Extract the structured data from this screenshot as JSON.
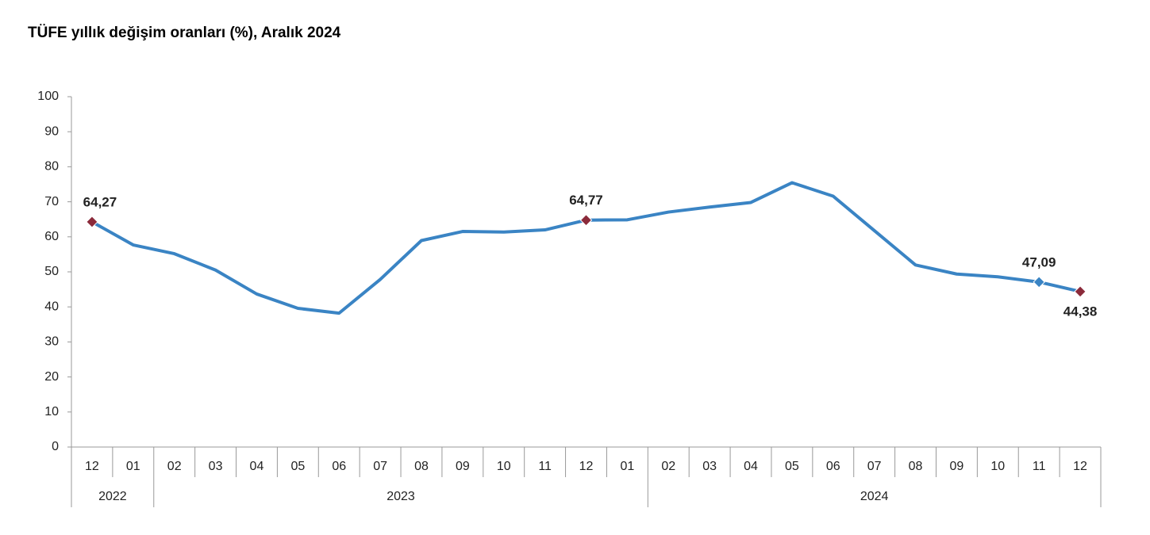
{
  "chart_data": {
    "type": "line",
    "title": "TÜFE yıllık değişim oranları (%), Aralık 2024",
    "categories": [
      "12",
      "01",
      "02",
      "03",
      "04",
      "05",
      "06",
      "07",
      "08",
      "09",
      "10",
      "11",
      "12",
      "01",
      "02",
      "03",
      "04",
      "05",
      "06",
      "07",
      "08",
      "09",
      "10",
      "11",
      "12"
    ],
    "year_labels": [
      "2022",
      null,
      "2023",
      null,
      null,
      null,
      null,
      null,
      null,
      null,
      null,
      null,
      null,
      null,
      "2024",
      null,
      null,
      null,
      null,
      null,
      null,
      null,
      null,
      null,
      null
    ],
    "series": [
      {
        "color": "#3a84c4",
        "values": [
          64.27,
          57.68,
          55.18,
          50.51,
          43.68,
          39.59,
          38.21,
          47.83,
          58.94,
          61.53,
          61.36,
          61.98,
          64.77,
          64.86,
          67.07,
          68.5,
          69.8,
          75.45,
          71.6,
          61.78,
          51.97,
          49.38,
          48.58,
          47.09,
          44.38
        ],
        "value_labels": [
          "64,27",
          null,
          null,
          null,
          null,
          null,
          null,
          null,
          null,
          null,
          null,
          null,
          "64,77",
          null,
          null,
          null,
          null,
          null,
          null,
          null,
          null,
          null,
          null,
          "47,09",
          "44,38"
        ],
        "marker_colors": [
          "#8b2a3a",
          null,
          null,
          null,
          null,
          null,
          null,
          null,
          null,
          null,
          null,
          null,
          "#8b2a3a",
          null,
          null,
          null,
          null,
          null,
          null,
          null,
          null,
          null,
          null,
          "#3a84c4",
          "#8b2a3a"
        ]
      }
    ],
    "ylim": [
      0,
      100
    ],
    "yticks": [
      0,
      10,
      20,
      30,
      40,
      50,
      60,
      70,
      80,
      90,
      100
    ]
  }
}
